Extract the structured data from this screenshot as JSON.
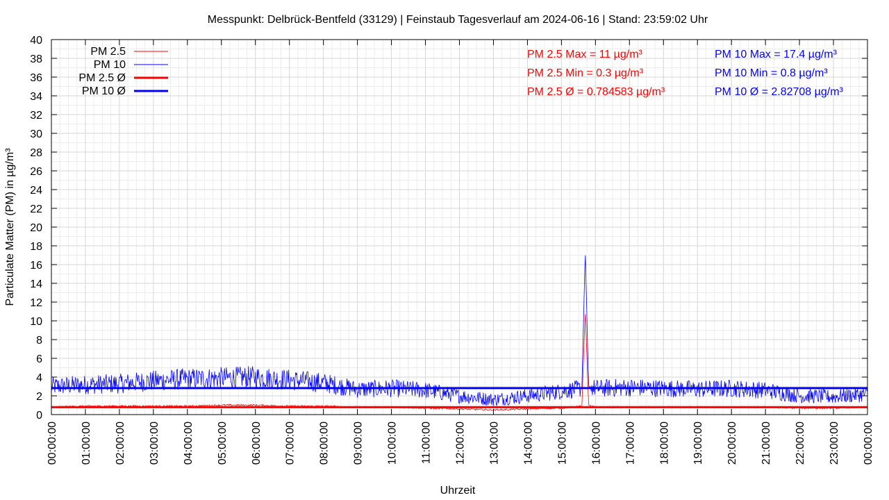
{
  "chart_data": {
    "type": "line",
    "title": "Messpunkt: Delbrück-Bentfeld (33129) | Feinstaub Tagesverlauf am 2024-06-16 | Stand: 23:59:02 Uhr",
    "xlabel": "Uhrzeit",
    "ylabel": "Particulate Matter (PM) in µg/m³",
    "ylim": [
      0,
      40
    ],
    "y_ticks": [
      0,
      2,
      4,
      6,
      8,
      10,
      12,
      14,
      16,
      18,
      20,
      22,
      24,
      26,
      28,
      30,
      32,
      34,
      36,
      38,
      40
    ],
    "x_range_hours": [
      0,
      24
    ],
    "x_tick_labels": [
      "00:00:00",
      "01:00:00",
      "02:00:00",
      "03:00:00",
      "04:00:00",
      "05:00:00",
      "06:00:00",
      "07:00:00",
      "08:00:00",
      "09:00:00",
      "10:00:00",
      "11:00:00",
      "12:00:00",
      "13:00:00",
      "14:00:00",
      "15:00:00",
      "16:00:00",
      "17:00:00",
      "18:00:00",
      "19:00:00",
      "20:00:00",
      "21:00:00",
      "22:00:00",
      "23:00:00",
      "00:00:00"
    ],
    "grid": true,
    "legend_position": "top-left",
    "series": [
      {
        "name": "PM 2.5",
        "color": "#ff0000",
        "style": "thin",
        "profile_hours": [
          0,
          1,
          2,
          3,
          4,
          5,
          6,
          7,
          8,
          9,
          10,
          11,
          12,
          13,
          14,
          15,
          15.6,
          15.7,
          15.8,
          16,
          17,
          18,
          19,
          20,
          21,
          22,
          23,
          24
        ],
        "profile_values": [
          0.8,
          0.9,
          0.9,
          0.9,
          0.9,
          1.0,
          1.0,
          0.9,
          0.9,
          0.8,
          0.8,
          0.7,
          0.6,
          0.5,
          0.6,
          0.7,
          0.9,
          11,
          1.0,
          0.8,
          0.8,
          0.8,
          0.8,
          0.8,
          0.8,
          0.7,
          0.7,
          0.8
        ]
      },
      {
        "name": "PM 10",
        "color": "#0000ff",
        "style": "thin",
        "profile_hours": [
          0,
          1,
          2,
          3,
          4,
          5,
          6,
          7,
          8,
          9,
          10,
          11,
          12,
          13,
          14,
          15,
          15.6,
          15.7,
          15.8,
          16,
          17,
          18,
          19,
          20,
          21,
          22,
          23,
          24
        ],
        "profile_values": [
          3.0,
          3.2,
          3.3,
          3.6,
          3.8,
          3.9,
          4.0,
          3.7,
          3.4,
          2.7,
          2.8,
          2.6,
          2.0,
          1.6,
          2.0,
          2.5,
          2.8,
          17.4,
          3.0,
          2.8,
          2.9,
          2.8,
          2.7,
          2.8,
          2.6,
          2.0,
          1.9,
          2.2
        ]
      },
      {
        "name": "PM 2.5 Ø",
        "color": "#ff0000",
        "style": "thick",
        "value": 0.784583
      },
      {
        "name": "PM 10 Ø",
        "color": "#0000ff",
        "style": "thick",
        "value": 2.82708
      }
    ],
    "annotations": {
      "pm25": [
        "PM 2.5 Max = 11 µg/m³",
        "PM 2.5 Min = 0.3 µg/m³",
        "PM 2.5 Ø = 0.784583 µg/m³"
      ],
      "pm10": [
        "PM 10 Max = 17.4 µg/m³",
        "PM 10 Min = 0.8 µg/m³",
        "PM 10 Ø = 2.82708 µg/m³"
      ]
    }
  }
}
